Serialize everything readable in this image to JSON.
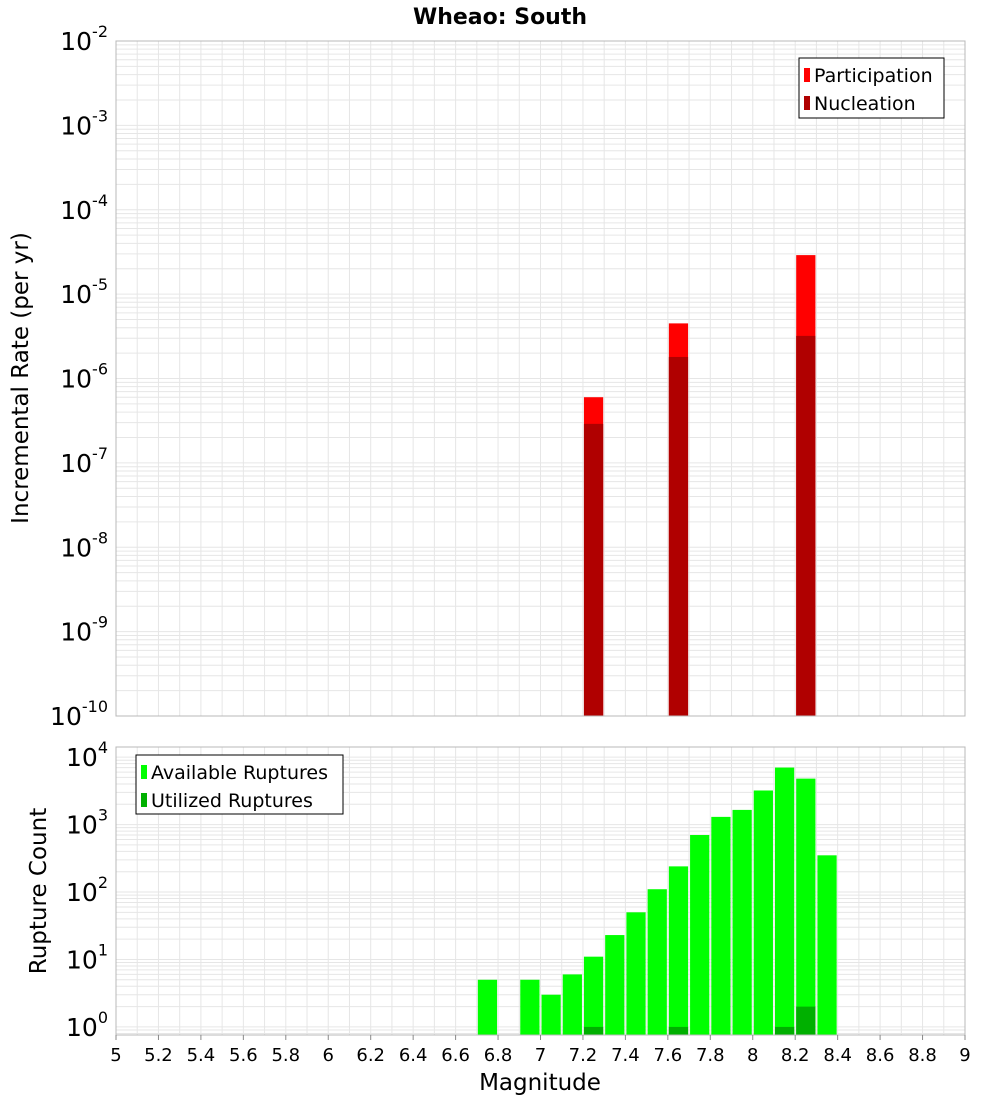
{
  "chart_data": [
    {
      "type": "bar",
      "title": "Wheao: South",
      "ylabel": "Incremental Rate (per yr)",
      "xlabel": "",
      "yscale": "log",
      "ylim_exp": [
        -10,
        -2
      ],
      "ytick_base": "10",
      "ytick_exponents": [
        "-2",
        "-3",
        "-4",
        "-5",
        "-6",
        "-7",
        "-8",
        "-9",
        "-10"
      ],
      "xlim": [
        5,
        9
      ],
      "bar_width": 0.1,
      "grid": true,
      "legend": "top-right",
      "series": [
        {
          "name": "Participation",
          "color": "#ff0000",
          "x": [
            7.25,
            7.65,
            8.25
          ],
          "values": [
            6e-07,
            4.5e-06,
            2.9e-05
          ]
        },
        {
          "name": "Nucleation",
          "color": "#b00000",
          "x": [
            7.25,
            7.65,
            8.25
          ],
          "values": [
            2.9e-07,
            1.8e-06,
            3.2e-06
          ]
        }
      ]
    },
    {
      "type": "bar",
      "title": "",
      "ylabel": "Rupture Count",
      "xlabel": "Magnitude",
      "yscale": "log",
      "ylim_exp": [
        -0.12,
        4.15
      ],
      "ytick_base": "10",
      "ytick_exponents": [
        "0",
        "1",
        "2",
        "3",
        "4"
      ],
      "xlim": [
        5,
        9
      ],
      "xticks": [
        "5",
        "5.2",
        "5.4",
        "5.6",
        "5.8",
        "6",
        "6.2",
        "6.4",
        "6.6",
        "6.8",
        "7",
        "7.2",
        "7.4",
        "7.6",
        "7.8",
        "8",
        "8.2",
        "8.4",
        "8.6",
        "8.8",
        "9"
      ],
      "bar_width": 0.1,
      "grid": true,
      "legend": "top-left",
      "series": [
        {
          "name": "Available Ruptures",
          "color": "#00ff00",
          "x": [
            6.75,
            6.95,
            7.05,
            7.15,
            7.25,
            7.35,
            7.45,
            7.55,
            7.65,
            7.75,
            7.85,
            7.95,
            8.05,
            8.15,
            8.25,
            8.35
          ],
          "values": [
            5,
            5,
            3,
            6,
            11,
            23,
            50,
            110,
            240,
            700,
            1300,
            1650,
            3200,
            7000,
            4800,
            350
          ]
        },
        {
          "name": "Utilized Ruptures",
          "color": "#00b000",
          "x": [
            7.25,
            7.65,
            8.15,
            8.25
          ],
          "values": [
            1,
            1,
            1,
            2
          ]
        }
      ]
    }
  ]
}
